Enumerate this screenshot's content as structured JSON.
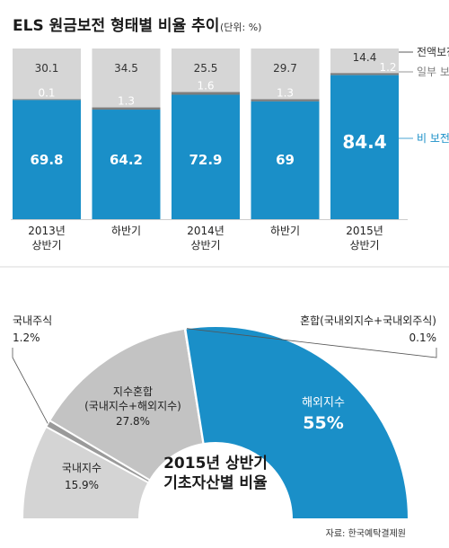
{
  "chart_data": [
    {
      "type": "bar",
      "stacked": true,
      "percent": true,
      "title": "ELS 원금보전 형태별 비율 추이",
      "unit": "(단위: %)",
      "categories": [
        [
          "2013년",
          "상반기"
        ],
        [
          "하반기"
        ],
        [
          "2014년",
          "상반기"
        ],
        [
          "하반기"
        ],
        [
          "2015년",
          "상반기"
        ]
      ],
      "series": [
        {
          "name": "비 보전",
          "color": "#1a8fc8",
          "values": [
            69.8,
            64.2,
            72.9,
            69,
            84.4
          ],
          "labels": [
            "69.8",
            "64.2",
            "72.9",
            "69",
            "84.4"
          ]
        },
        {
          "name": "일부 보전",
          "color": "#7d7d7d",
          "values": [
            0.1,
            1.3,
            1.6,
            1.3,
            1.2
          ],
          "labels": [
            "0.1",
            "1.3",
            "1.6",
            "1.3",
            "1.2"
          ]
        },
        {
          "name": "전액보전",
          "color": "#d6d6d6",
          "values": [
            30.1,
            34.5,
            25.5,
            29.7,
            14.4
          ],
          "labels": [
            "30.1",
            "34.5",
            "25.5",
            "29.7",
            "14.4"
          ]
        }
      ],
      "ylim": [
        0,
        100
      ]
    },
    {
      "type": "pie",
      "donut": true,
      "half": true,
      "title": [
        "2015년 상반기",
        "기초자산별 비율"
      ],
      "slices": [
        {
          "name": "국내지수",
          "value": 15.9,
          "label": "15.9%",
          "color": "#d4d4d4"
        },
        {
          "name": "국내주식",
          "value": 1.2,
          "label": "1.2%",
          "color": "#9a9a9a"
        },
        {
          "name": "지수혼합",
          "sublabel": "(국내지수+해외지수)",
          "value": 27.8,
          "label": "27.8%",
          "color": "#c3c3c3"
        },
        {
          "name": "혼합(국내외지수+국내외주식)",
          "value": 0.1,
          "label": "0.1%",
          "color": "#7d7d7d"
        },
        {
          "name": "해외지수",
          "value": 55,
          "label": "55%",
          "color": "#1a8fc8"
        }
      ]
    }
  ],
  "source": "자료: 한국예탁결제원"
}
